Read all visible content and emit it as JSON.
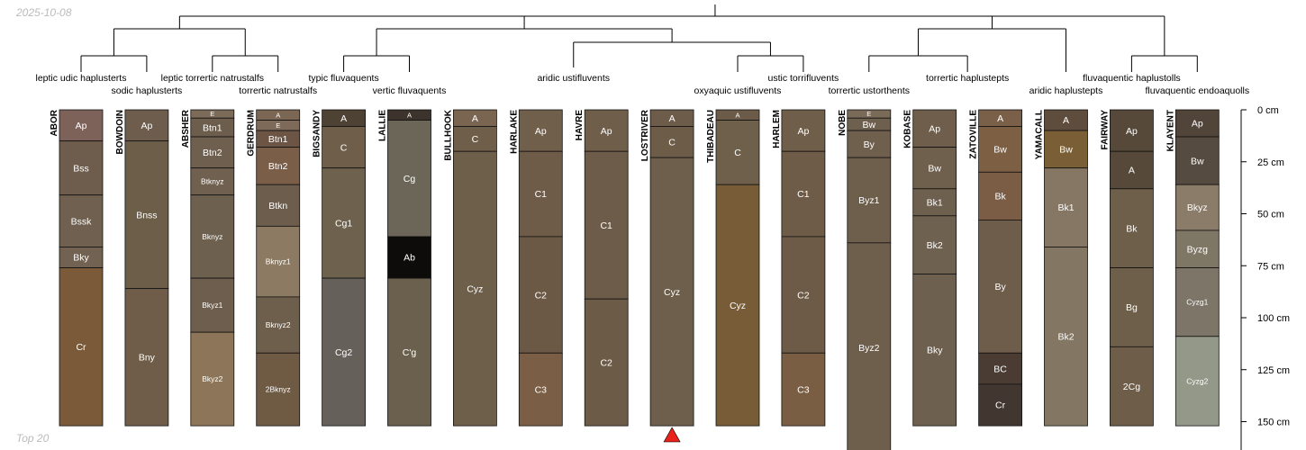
{
  "header": {
    "date": "2025-10-08"
  },
  "footer": {
    "caption": "Top 20"
  },
  "chart_data": {
    "type": "soil-profile-sketch",
    "depth_unit": "cm",
    "depth_ticks": [
      {
        "depth": 0,
        "label": "0 cm"
      },
      {
        "depth": 25,
        "label": "25 cm"
      },
      {
        "depth": 50,
        "label": "50 cm"
      },
      {
        "depth": 75,
        "label": "75 cm"
      },
      {
        "depth": 100,
        "label": "100 cm"
      },
      {
        "depth": 125,
        "label": "125 cm"
      },
      {
        "depth": 150,
        "label": "150 cm"
      }
    ],
    "marker_profile": "LOSTRIVER",
    "marker_color": "#e8211a",
    "profiles": [
      {
        "name": "ABOR",
        "taxon": "leptic udic haplusterts",
        "horizons": [
          {
            "name": "Ap",
            "top": 0,
            "bottom": 15,
            "color": "#7d625a"
          },
          {
            "name": "Bss",
            "top": 15,
            "bottom": 41,
            "color": "#6e5d4d"
          },
          {
            "name": "Bssk",
            "top": 41,
            "bottom": 66,
            "color": "#6f604f"
          },
          {
            "name": "Bky",
            "top": 66,
            "bottom": 76,
            "color": "#716251"
          },
          {
            "name": "Cr",
            "top": 76,
            "bottom": 152,
            "color": "#7b5a39"
          }
        ]
      },
      {
        "name": "BOWDOIN",
        "taxon": "sodic haplusterts",
        "horizons": [
          {
            "name": "Ap",
            "top": 0,
            "bottom": 15,
            "color": "#6e5c4c"
          },
          {
            "name": "Bnss",
            "top": 15,
            "bottom": 86,
            "color": "#6c5e49"
          },
          {
            "name": "Bny",
            "top": 86,
            "bottom": 152,
            "color": "#6f5d4a"
          }
        ]
      },
      {
        "name": "ABSHER",
        "taxon": "leptic torrertic natrustalfs",
        "horizons": [
          {
            "name": "E",
            "top": 0,
            "bottom": 4,
            "color": "#7b6b58"
          },
          {
            "name": "Btn1",
            "top": 4,
            "bottom": 13,
            "color": "#6c5d4c"
          },
          {
            "name": "Btn2",
            "top": 13,
            "bottom": 28,
            "color": "#6e5f4e"
          },
          {
            "name": "Btknyz",
            "top": 28,
            "bottom": 41,
            "color": "#6f604f"
          },
          {
            "name": "Bknyz",
            "top": 41,
            "bottom": 81,
            "color": "#6e604f"
          },
          {
            "name": "Bkyz1",
            "top": 81,
            "bottom": 107,
            "color": "#6d5e4d"
          },
          {
            "name": "Bkyz2",
            "top": 107,
            "bottom": 152,
            "color": "#8c7558"
          }
        ]
      },
      {
        "name": "GERDRUM",
        "taxon": "torrertic natrustalfs",
        "horizons": [
          {
            "name": "A",
            "top": 0,
            "bottom": 5,
            "color": "#7c6654"
          },
          {
            "name": "E",
            "top": 5,
            "bottom": 10,
            "color": "#7e6a58"
          },
          {
            "name": "Btn1",
            "top": 10,
            "bottom": 18,
            "color": "#6c5545"
          },
          {
            "name": "Btn2",
            "top": 18,
            "bottom": 36,
            "color": "#7a5e47"
          },
          {
            "name": "Btkn",
            "top": 36,
            "bottom": 56,
            "color": "#6d5d4d"
          },
          {
            "name": "Bknyz1",
            "top": 56,
            "bottom": 90,
            "color": "#8c7a62"
          },
          {
            "name": "Bknyz2",
            "top": 90,
            "bottom": 117,
            "color": "#6e5f4d"
          },
          {
            "name": "2Bknyz",
            "top": 117,
            "bottom": 152,
            "color": "#6f5a44"
          }
        ]
      },
      {
        "name": "BIGSANDY",
        "taxon": "typic fluvaquents",
        "horizons": [
          {
            "name": "A",
            "top": 0,
            "bottom": 8,
            "color": "#4d4233"
          },
          {
            "name": "C",
            "top": 8,
            "bottom": 28,
            "color": "#6e5e4a"
          },
          {
            "name": "Cg1",
            "top": 28,
            "bottom": 81,
            "color": "#6e624e"
          },
          {
            "name": "Cg2",
            "top": 81,
            "bottom": 152,
            "color": "#65605a"
          }
        ]
      },
      {
        "name": "LALLIE",
        "taxon": "vertic fluvaquents",
        "horizons": [
          {
            "name": "A",
            "top": 0,
            "bottom": 5,
            "color": "#3c342c"
          },
          {
            "name": "Cg",
            "top": 5,
            "bottom": 61,
            "color": "#6b6658"
          },
          {
            "name": "Ab",
            "top": 61,
            "bottom": 81,
            "color": "#0e0c0b"
          },
          {
            "name": "C'g",
            "top": 81,
            "bottom": 152,
            "color": "#6a604d"
          }
        ]
      },
      {
        "name": "BULLHOOK",
        "taxon": "aridic ustifluvents",
        "horizons": [
          {
            "name": "A",
            "top": 0,
            "bottom": 8,
            "color": "#7a6550"
          },
          {
            "name": "C",
            "top": 8,
            "bottom": 20,
            "color": "#6e5e4a"
          },
          {
            "name": "Cyz",
            "top": 20,
            "bottom": 152,
            "color": "#6e5f4a"
          }
        ]
      },
      {
        "name": "HARLAKE",
        "taxon": "aridic ustifluvents",
        "horizons": [
          {
            "name": "Ap",
            "top": 0,
            "bottom": 20,
            "color": "#705f4b"
          },
          {
            "name": "C1",
            "top": 20,
            "bottom": 61,
            "color": "#6e5c48"
          },
          {
            "name": "C2",
            "top": 61,
            "bottom": 117,
            "color": "#6b5845"
          },
          {
            "name": "C3",
            "top": 117,
            "bottom": 152,
            "color": "#7a5e45"
          }
        ]
      },
      {
        "name": "HAVRE",
        "taxon": "aridic ustifluvents",
        "horizons": [
          {
            "name": "Ap",
            "top": 0,
            "bottom": 20,
            "color": "#6e5e4a"
          },
          {
            "name": "C1",
            "top": 20,
            "bottom": 91,
            "color": "#6d5c49"
          },
          {
            "name": "C2",
            "top": 91,
            "bottom": 152,
            "color": "#6c5b47"
          }
        ]
      },
      {
        "name": "LOSTRIVER",
        "taxon": "aridic ustifluvents",
        "horizons": [
          {
            "name": "A",
            "top": 0,
            "bottom": 8,
            "color": "#6e5c4a"
          },
          {
            "name": "C",
            "top": 8,
            "bottom": 23,
            "color": "#6d5c48"
          },
          {
            "name": "Cyz",
            "top": 23,
            "bottom": 152,
            "color": "#6d5f4b"
          }
        ]
      },
      {
        "name": "THIBADEAU",
        "taxon": "oxyaquic ustifluvents",
        "horizons": [
          {
            "name": "A",
            "top": 0,
            "bottom": 5,
            "color": "#6c5b49"
          },
          {
            "name": "C",
            "top": 5,
            "bottom": 36,
            "color": "#6f604c"
          },
          {
            "name": "Cyz",
            "top": 36,
            "bottom": 152,
            "color": "#785c37"
          }
        ]
      },
      {
        "name": "HARLEM",
        "taxon": "ustic torrifluvents",
        "horizons": [
          {
            "name": "Ap",
            "top": 0,
            "bottom": 20,
            "color": "#6e5e4a"
          },
          {
            "name": "C1",
            "top": 20,
            "bottom": 61,
            "color": "#6e5c48"
          },
          {
            "name": "C2",
            "top": 61,
            "bottom": 117,
            "color": "#6d5b47"
          },
          {
            "name": "C3",
            "top": 117,
            "bottom": 152,
            "color": "#7a5e44"
          }
        ]
      },
      {
        "name": "NOBE",
        "taxon": "torrertic ustorthents",
        "horizons": [
          {
            "name": "E",
            "top": 0,
            "bottom": 4,
            "color": "#7a6a58"
          },
          {
            "name": "Bw",
            "top": 4,
            "bottom": 10,
            "color": "#6e604f"
          },
          {
            "name": "By",
            "top": 10,
            "bottom": 23,
            "color": "#6f604e"
          },
          {
            "name": "Byz1",
            "top": 23,
            "bottom": 64,
            "color": "#6e5f4d"
          },
          {
            "name": "Byz2",
            "top": 64,
            "bottom": 165,
            "color": "#6e5f4c"
          }
        ]
      },
      {
        "name": "KOBASE",
        "taxon": "torrertic haplustepts",
        "horizons": [
          {
            "name": "Ap",
            "top": 0,
            "bottom": 18,
            "color": "#6e5e4b"
          },
          {
            "name": "Bw",
            "top": 18,
            "bottom": 38,
            "color": "#6f604d"
          },
          {
            "name": "Bk1",
            "top": 38,
            "bottom": 51,
            "color": "#6e604e"
          },
          {
            "name": "Bk2",
            "top": 51,
            "bottom": 79,
            "color": "#6f614f"
          },
          {
            "name": "Bky",
            "top": 79,
            "bottom": 152,
            "color": "#6e604e"
          }
        ]
      },
      {
        "name": "ZATOVILLE",
        "taxon": "torrertic haplustepts",
        "horizons": [
          {
            "name": "A",
            "top": 0,
            "bottom": 8,
            "color": "#7a6048"
          },
          {
            "name": "Bw",
            "top": 8,
            "bottom": 30,
            "color": "#7d5f44"
          },
          {
            "name": "Bk",
            "top": 30,
            "bottom": 53,
            "color": "#7a5d44"
          },
          {
            "name": "By",
            "top": 53,
            "bottom": 117,
            "color": "#6f5d4b"
          },
          {
            "name": "BC",
            "top": 117,
            "bottom": 132,
            "color": "#4a3c33"
          },
          {
            "name": "Cr",
            "top": 132,
            "bottom": 152,
            "color": "#413630"
          }
        ]
      },
      {
        "name": "YAMACALL",
        "taxon": "aridic haplustepts",
        "horizons": [
          {
            "name": "A",
            "top": 0,
            "bottom": 10,
            "color": "#5e4d3c"
          },
          {
            "name": "Bw",
            "top": 10,
            "bottom": 28,
            "color": "#7a5e36"
          },
          {
            "name": "Bk1",
            "top": 28,
            "bottom": 66,
            "color": "#867764"
          },
          {
            "name": "Bk2",
            "top": 66,
            "bottom": 152,
            "color": "#837662"
          }
        ]
      },
      {
        "name": "FAIRWAY",
        "taxon": "fluvaquentic haplustolls",
        "horizons": [
          {
            "name": "Ap",
            "top": 0,
            "bottom": 20,
            "color": "#564939"
          },
          {
            "name": "A",
            "top": 20,
            "bottom": 38,
            "color": "#564939"
          },
          {
            "name": "Bk",
            "top": 38,
            "bottom": 76,
            "color": "#6e5f4b"
          },
          {
            "name": "Bg",
            "top": 76,
            "bottom": 114,
            "color": "#6e5f4b"
          },
          {
            "name": "2Cg",
            "top": 114,
            "bottom": 152,
            "color": "#6e5e49"
          }
        ]
      },
      {
        "name": "KLAYENT",
        "taxon": "fluvaquentic endoaquolls",
        "horizons": [
          {
            "name": "Ap",
            "top": 0,
            "bottom": 13,
            "color": "#51453a"
          },
          {
            "name": "Bw",
            "top": 13,
            "bottom": 36,
            "color": "#564b40"
          },
          {
            "name": "Bkyz",
            "top": 36,
            "bottom": 58,
            "color": "#8a7c68"
          },
          {
            "name": "Byzg",
            "top": 58,
            "bottom": 76,
            "color": "#7f7766"
          },
          {
            "name": "Cyzg1",
            "top": 76,
            "bottom": 109,
            "color": "#7c7568"
          },
          {
            "name": "Cyzg2",
            "top": 109,
            "bottom": 152,
            "color": "#949888"
          }
        ]
      }
    ]
  }
}
